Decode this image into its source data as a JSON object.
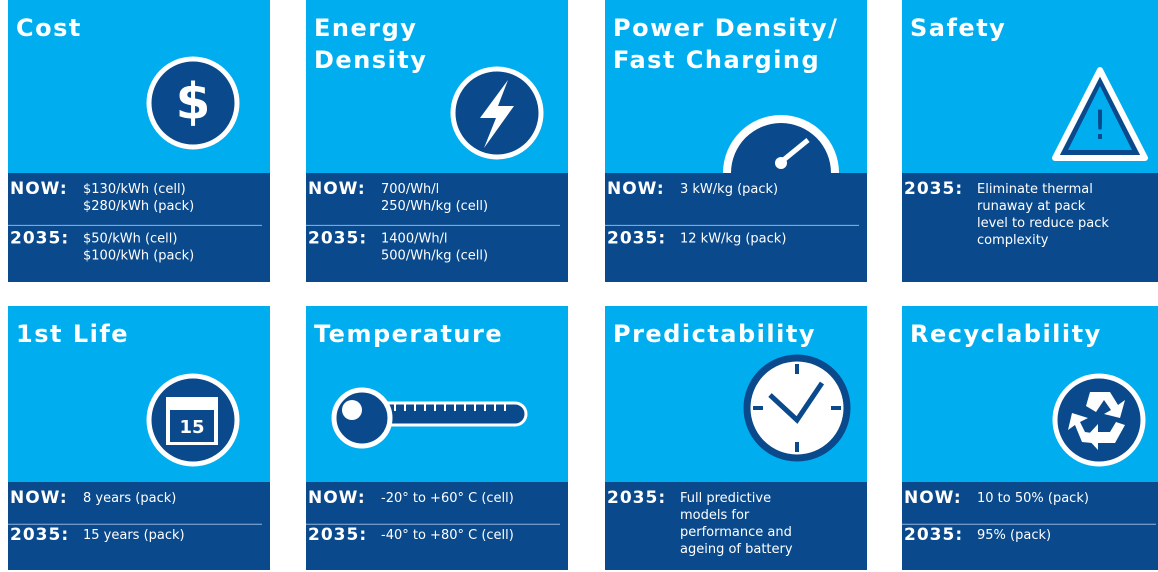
{
  "cards": [
    {
      "title": [
        "Cost"
      ],
      "icon_text": "$",
      "rows": [
        {
          "label": "NOW:",
          "lines": [
            "$130/kWh (cell)",
            "$280/kWh (pack)"
          ]
        },
        {
          "label": "2035:",
          "lines": [
            "$50/kWh (cell)",
            "$100/kWh (pack)"
          ]
        }
      ]
    },
    {
      "title": [
        "Energy",
        "Density"
      ],
      "rows": [
        {
          "label": "NOW:",
          "lines": [
            "700/Wh/l",
            "250/Wh/kg (cell)"
          ]
        },
        {
          "label": "2035:",
          "lines": [
            "1400/Wh/l",
            "500/Wh/kg (cell)"
          ]
        }
      ]
    },
    {
      "title": [
        "Power Density/",
        "Fast Charging"
      ],
      "rows": [
        {
          "label": "NOW:",
          "lines": [
            "3 kW/kg (pack)"
          ]
        },
        {
          "label": "2035:",
          "lines": [
            "12 kW/kg (pack)"
          ]
        }
      ]
    },
    {
      "title": [
        "Safety"
      ],
      "icon_text": "!",
      "rows": [
        {
          "label": "2035:",
          "lines": [
            "Eliminate thermal",
            "runaway at pack",
            "level to reduce pack",
            "complexity"
          ]
        }
      ]
    },
    {
      "title": [
        "1st Life"
      ],
      "icon_text": "15",
      "rows": [
        {
          "label": "NOW:",
          "lines": [
            "8 years (pack)"
          ]
        },
        {
          "label": "2035:",
          "lines": [
            "15 years (pack)"
          ]
        }
      ]
    },
    {
      "title": [
        "Temperature"
      ],
      "rows": [
        {
          "label": "NOW:",
          "lines": [
            "-20° to +60° C (cell)"
          ]
        },
        {
          "label": "2035:",
          "lines": [
            "-40° to +80° C (cell)"
          ]
        }
      ]
    },
    {
      "title": [
        "Predictability"
      ],
      "rows": [
        {
          "label": "2035:",
          "lines": [
            "Full predictive",
            "models for",
            "performance and",
            "ageing of battery"
          ]
        }
      ]
    },
    {
      "title": [
        "Recyclability"
      ],
      "rows": [
        {
          "label": "NOW:",
          "lines": [
            "10 to 50% (pack)"
          ]
        },
        {
          "label": "2035:",
          "lines": [
            "95% (pack)"
          ]
        }
      ]
    }
  ]
}
